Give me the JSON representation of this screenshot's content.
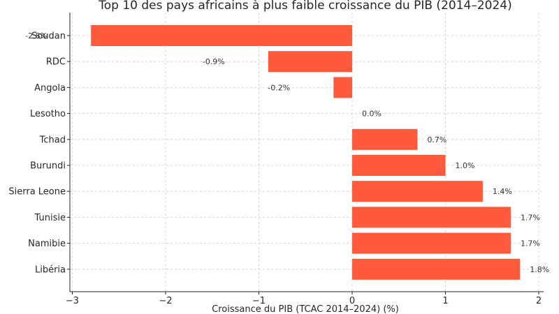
{
  "chart_data": {
    "type": "bar",
    "orientation": "horizontal",
    "title": "Top 10 des pays africains à plus faible croissance du PIB (2014–2024)",
    "xlabel": "Croissance du PIB (TCAC 2014–2024) (%)",
    "ylabel": "",
    "xlim": [
      -3,
      2
    ],
    "xticks": [
      -3,
      -2,
      -1,
      0,
      1,
      2
    ],
    "xtick_labels": [
      "−3",
      "−2",
      "−1",
      "0",
      "1",
      "2"
    ],
    "grid": true,
    "categories": [
      "Soudan",
      "RDC",
      "Angola",
      "Lesotho",
      "Tchad",
      "Burundi",
      "Sierra Leone",
      "Tunisie",
      "Namibie",
      "Libéria"
    ],
    "values": [
      -2.8,
      -0.9,
      -0.2,
      0.0,
      0.7,
      1.0,
      1.4,
      1.7,
      1.7,
      1.8
    ],
    "data_labels": [
      "-2.8%",
      "-0.9%",
      "-0.2%",
      "0.0%",
      "0.7%",
      "1.0%",
      "1.4%",
      "1.7%",
      "1.7%",
      "1.8%"
    ],
    "bar_color": "#ff5a3c"
  }
}
